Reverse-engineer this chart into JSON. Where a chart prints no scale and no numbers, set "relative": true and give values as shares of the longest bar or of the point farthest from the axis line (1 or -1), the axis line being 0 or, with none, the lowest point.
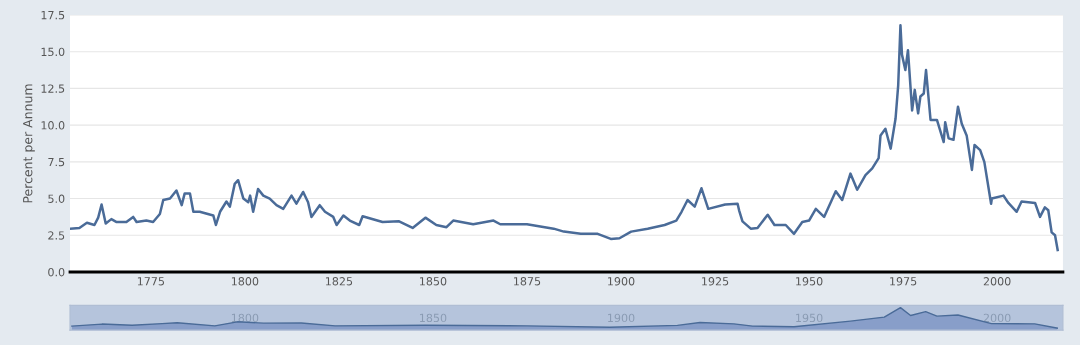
{
  "chart_data": [
    {
      "type": "line",
      "ylabel": "Percent per Annum",
      "xlim": [
        1753.5,
        2017.5
      ],
      "ylim": [
        0,
        17.5
      ],
      "xticks": [
        1775,
        1800,
        1825,
        1850,
        1875,
        1900,
        1925,
        1950,
        1975,
        2000
      ],
      "yticks": [
        {
          "value": 0,
          "label": "0.0"
        },
        2.5,
        {
          "value": 5,
          "label": "5.0"
        },
        7.5,
        {
          "value": 10,
          "label": "10.0"
        },
        12.5,
        {
          "value": 15,
          "label": "15.0"
        },
        17.5
      ],
      "grid": "y",
      "legend": false,
      "marker": "none",
      "line_style": "solid",
      "series": [
        {
          "color": "#4a6b98",
          "x": [
            1753.6,
            1756,
            1758,
            1760,
            1761,
            1761.9,
            1763,
            1764.5,
            1765.9,
            1768.5,
            1770.3,
            1771.2,
            1773.8,
            1775.6,
            1777.4,
            1778.3,
            1780.1,
            1781.8,
            1783.2,
            1784,
            1785.4,
            1786.3,
            1788,
            1791.6,
            1792.3,
            1793.4,
            1795.1,
            1796,
            1797.3,
            1798.2,
            1799.6,
            1800.9,
            1801.4,
            1802.2,
            1803.5,
            1804.9,
            1806.6,
            1808.4,
            1810.2,
            1812.4,
            1813.7,
            1815.5,
            1816.8,
            1817.7,
            1819.9,
            1821.3,
            1823.5,
            1824.4,
            1826.2,
            1827.9,
            1830.4,
            1831.3,
            1836.6,
            1841,
            1844.6,
            1848,
            1850.9,
            1853.6,
            1855.4,
            1860.7,
            1866.1,
            1867.9,
            1875,
            1882.1,
            1884.8,
            1889.3,
            1893.8,
            1897.3,
            1899.6,
            1902.7,
            1907.1,
            1911.6,
            1914.7,
            1916.1,
            1917.7,
            1919.6,
            1921.4,
            1923.2,
            1927.7,
            1931,
            1931.4,
            1932.3,
            1934.5,
            1936.3,
            1939,
            1940.8,
            1943.8,
            1946,
            1948.2,
            1950,
            1951.8,
            1954,
            1957.1,
            1958.8,
            1961,
            1962.8,
            1965,
            1966.8,
            1968.5,
            1969,
            1970.3,
            1971.7,
            1973,
            1973.7,
            1974.3,
            1974.7,
            1975.6,
            1976.3,
            1977.4,
            1978.1,
            1979,
            1979.6,
            1980.5,
            1981.1,
            1982.3,
            1984,
            1985.8,
            1986.2,
            1987.1,
            1988.4,
            1989.6,
            1990.6,
            1991.9,
            1993.3,
            1994,
            1995.5,
            1996.6,
            1998.4,
            1998.6,
            2001.7,
            2003,
            2005.2,
            2006.5,
            2010.1,
            2011.4,
            2012.7,
            2013.6,
            2014.5,
            2015.4,
            2016.1
          ],
          "values": [
            2.95,
            3.0,
            3.35,
            3.2,
            3.7,
            4.6,
            3.3,
            3.6,
            3.4,
            3.4,
            3.75,
            3.4,
            3.5,
            3.4,
            3.95,
            4.9,
            5.0,
            5.55,
            4.55,
            5.35,
            5.35,
            4.1,
            4.1,
            3.85,
            3.2,
            4.1,
            4.8,
            4.45,
            6.0,
            6.25,
            5.0,
            4.75,
            5.2,
            4.1,
            5.65,
            5.2,
            5.0,
            4.55,
            4.3,
            5.2,
            4.65,
            5.45,
            4.75,
            3.75,
            4.55,
            4.1,
            3.75,
            3.2,
            3.85,
            3.5,
            3.2,
            3.8,
            3.4,
            3.45,
            3.0,
            3.7,
            3.2,
            3.05,
            3.5,
            3.25,
            3.5,
            3.25,
            3.25,
            2.95,
            2.75,
            2.6,
            2.6,
            2.25,
            2.3,
            2.75,
            2.95,
            3.2,
            3.5,
            4.1,
            4.9,
            4.45,
            5.7,
            4.3,
            4.6,
            4.65,
            4.2,
            3.45,
            2.95,
            3.0,
            3.9,
            3.2,
            3.2,
            2.6,
            3.4,
            3.5,
            4.3,
            3.75,
            5.5,
            4.9,
            6.7,
            5.6,
            6.6,
            7.05,
            7.75,
            9.3,
            9.75,
            8.4,
            10.45,
            12.7,
            16.8,
            14.8,
            13.75,
            15.1,
            11.0,
            12.4,
            10.8,
            11.95,
            12.15,
            13.75,
            10.35,
            10.35,
            8.85,
            10.2,
            9.1,
            9.0,
            11.25,
            10.1,
            9.3,
            6.95,
            8.65,
            8.3,
            7.5,
            4.65,
            5.0,
            5.2,
            4.7,
            4.1,
            4.8,
            4.7,
            3.75,
            4.4,
            4.2,
            2.7,
            2.5,
            1.5
          ]
        }
      ]
    },
    {
      "type": "area",
      "relative": true,
      "xlim": [
        1753.5,
        2017.5
      ],
      "xticks": [
        1800,
        1850,
        1900,
        1950,
        2000
      ],
      "grid": false,
      "legend": false,
      "series": [
        {
          "color": "#7d95c4",
          "x": [
            1754,
            1762,
            1770,
            1778,
            1782,
            1792,
            1798,
            1805,
            1815,
            1824,
            1848,
            1875,
            1897,
            1915,
            1921,
            1930,
            1935,
            1946,
            1961,
            1970,
            1974.3,
            1977,
            1981,
            1984,
            1989.6,
            1998.5,
            2010,
            2016
          ],
          "values": [
            0.18,
            0.27,
            0.22,
            0.29,
            0.33,
            0.19,
            0.37,
            0.31,
            0.32,
            0.19,
            0.22,
            0.19,
            0.13,
            0.21,
            0.34,
            0.28,
            0.18,
            0.15,
            0.4,
            0.58,
            1,
            0.65,
            0.82,
            0.62,
            0.67,
            0.29,
            0.28,
            0.09
          ]
        }
      ]
    }
  ]
}
